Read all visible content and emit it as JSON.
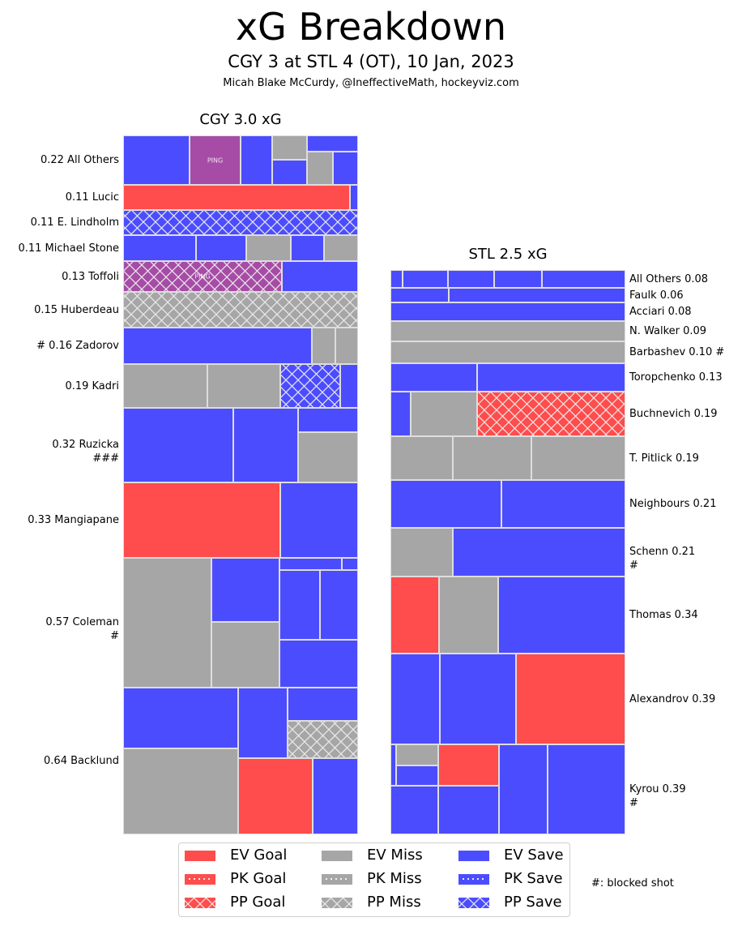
{
  "header": {
    "title": "xG Breakdown",
    "subtitle": "CGY 3 at STL 4 (OT), 10 Jan, 2023",
    "credit": "Micah Blake McCurdy, @IneffectiveMath, hockeyviz.com"
  },
  "colors": {
    "goal": "#ff4c4c",
    "miss": "#a6a6a6",
    "save": "#4c4cff",
    "ping": "#a64ca6",
    "cell_border": "#dddddd"
  },
  "legend": {
    "items": [
      {
        "label": "EV Goal",
        "outcome": "goal",
        "strength": "EV"
      },
      {
        "label": "PK Goal",
        "outcome": "goal",
        "strength": "PK"
      },
      {
        "label": "PP Goal",
        "outcome": "goal",
        "strength": "PP"
      },
      {
        "label": "EV Miss",
        "outcome": "miss",
        "strength": "EV"
      },
      {
        "label": "PK Miss",
        "outcome": "miss",
        "strength": "PK"
      },
      {
        "label": "PP Miss",
        "outcome": "miss",
        "strength": "PP"
      },
      {
        "label": "EV Save",
        "outcome": "save",
        "strength": "EV"
      },
      {
        "label": "PK Save",
        "outcome": "save",
        "strength": "PK"
      },
      {
        "label": "PP Save",
        "outcome": "save",
        "strength": "PP"
      }
    ],
    "note": "#: blocked shot"
  },
  "chart_data": {
    "type": "treemap",
    "title": "xG Breakdown",
    "panels": [
      {
        "team": "CGY",
        "title": "CGY 3.0 xG",
        "total_xg": 3.0,
        "label_side": "left",
        "rows": [
          {
            "player": "All Others",
            "xg": 0.22,
            "label": "0.22 All Others",
            "blocked": 0,
            "shots": [
              [
                "save",
                "EV"
              ],
              [
                "ping",
                "EV",
                "PING"
              ],
              [
                "save",
                "EV"
              ],
              [
                "miss",
                "EV"
              ],
              [
                "save",
                "EV"
              ],
              [
                "save",
                "EV"
              ],
              [
                "miss",
                "EV"
              ],
              [
                "save",
                "EV"
              ]
            ]
          },
          {
            "player": "Lucic",
            "xg": 0.11,
            "label": "0.11 Lucic",
            "blocked": 0,
            "shots": [
              [
                "goal",
                "EV"
              ],
              [
                "save",
                "EV"
              ]
            ]
          },
          {
            "player": "E. Lindholm",
            "xg": 0.11,
            "label": "0.11 E. Lindholm",
            "blocked": 0,
            "shots": [
              [
                "save",
                "PP"
              ]
            ]
          },
          {
            "player": "Michael Stone",
            "xg": 0.11,
            "label": "0.11 Michael Stone",
            "blocked": 0,
            "shots": [
              [
                "save",
                "EV"
              ],
              [
                "save",
                "EV"
              ],
              [
                "miss",
                "EV"
              ],
              [
                "save",
                "EV"
              ],
              [
                "miss",
                "EV"
              ]
            ]
          },
          {
            "player": "Toffoli",
            "xg": 0.13,
            "label": "0.13 Toffoli",
            "blocked": 0,
            "shots": [
              [
                "ping",
                "PP",
                "PING"
              ],
              [
                "save",
                "EV"
              ]
            ]
          },
          {
            "player": "Huberdeau",
            "xg": 0.15,
            "label": "0.15 Huberdeau",
            "blocked": 0,
            "shots": [
              [
                "miss",
                "PP"
              ]
            ]
          },
          {
            "player": "Zadorov",
            "xg": 0.16,
            "label": "# 0.16 Zadorov",
            "blocked": 1,
            "shots": [
              [
                "save",
                "EV"
              ],
              [
                "miss",
                "EV"
              ],
              [
                "miss",
                "EV"
              ]
            ]
          },
          {
            "player": "Kadri",
            "xg": 0.19,
            "label": "0.19 Kadri",
            "blocked": 0,
            "shots": [
              [
                "miss",
                "EV"
              ],
              [
                "miss",
                "EV"
              ],
              [
                "save",
                "PP"
              ],
              [
                "save",
                "EV"
              ]
            ]
          },
          {
            "player": "Ruzicka",
            "xg": 0.32,
            "label": "0.32 Ruzicka\n###",
            "blocked": 3,
            "shots": [
              [
                "save",
                "EV"
              ],
              [
                "save",
                "EV"
              ],
              [
                "save",
                "EV"
              ],
              [
                "miss",
                "EV"
              ]
            ]
          },
          {
            "player": "Mangiapane",
            "xg": 0.33,
            "label": "0.33 Mangiapane",
            "blocked": 0,
            "shots": [
              [
                "goal",
                "EV"
              ],
              [
                "save",
                "EV"
              ]
            ]
          },
          {
            "player": "Coleman",
            "xg": 0.57,
            "label": "0.57 Coleman\n#",
            "blocked": 1,
            "shots": [
              [
                "miss",
                "EV"
              ],
              [
                "save",
                "EV"
              ],
              [
                "miss",
                "EV"
              ],
              [
                "save",
                "EV"
              ],
              [
                "save",
                "EV"
              ],
              [
                "save",
                "EV"
              ],
              [
                "save",
                "EV"
              ],
              [
                "save",
                "EV"
              ]
            ]
          },
          {
            "player": "Backlund",
            "xg": 0.64,
            "label": "0.64 Backlund",
            "blocked": 0,
            "shots": [
              [
                "save",
                "EV"
              ],
              [
                "miss",
                "EV"
              ],
              [
                "save",
                "EV"
              ],
              [
                "save",
                "EV"
              ],
              [
                "miss",
                "PP"
              ],
              [
                "goal",
                "EV"
              ],
              [
                "save",
                "EV"
              ]
            ]
          }
        ]
      },
      {
        "team": "STL",
        "title": "STL 2.5 xG",
        "total_xg": 2.5,
        "label_side": "right",
        "rows": [
          {
            "player": "All Others",
            "xg": 0.08,
            "label": "All Others 0.08",
            "blocked": 0,
            "shots": [
              [
                "save",
                "EV"
              ],
              [
                "save",
                "EV"
              ],
              [
                "save",
                "EV"
              ],
              [
                "save",
                "EV"
              ],
              [
                "save",
                "EV"
              ]
            ]
          },
          {
            "player": "Faulk",
            "xg": 0.06,
            "label": "Faulk 0.06",
            "blocked": 0,
            "shots": [
              [
                "save",
                "EV"
              ],
              [
                "save",
                "EV"
              ]
            ]
          },
          {
            "player": "Acciari",
            "xg": 0.08,
            "label": "Acciari 0.08",
            "blocked": 0,
            "shots": [
              [
                "save",
                "EV"
              ]
            ]
          },
          {
            "player": "N. Walker",
            "xg": 0.09,
            "label": "N. Walker 0.09",
            "blocked": 0,
            "shots": [
              [
                "miss",
                "EV"
              ]
            ]
          },
          {
            "player": "Barbashev",
            "xg": 0.1,
            "label": "Barbashev 0.10 #",
            "blocked": 1,
            "shots": [
              [
                "miss",
                "EV"
              ]
            ]
          },
          {
            "player": "Toropchenko",
            "xg": 0.13,
            "label": "Toropchenko 0.13",
            "blocked": 0,
            "shots": [
              [
                "save",
                "EV"
              ],
              [
                "save",
                "EV"
              ]
            ]
          },
          {
            "player": "Buchnevich",
            "xg": 0.19,
            "label": "Buchnevich 0.19",
            "blocked": 0,
            "shots": [
              [
                "save",
                "EV"
              ],
              [
                "miss",
                "EV"
              ],
              [
                "goal",
                "PP"
              ]
            ]
          },
          {
            "player": "T. Pitlick",
            "xg": 0.19,
            "label": "T. Pitlick 0.19",
            "blocked": 0,
            "shots": [
              [
                "miss",
                "EV"
              ],
              [
                "miss",
                "EV"
              ],
              [
                "miss",
                "EV"
              ]
            ]
          },
          {
            "player": "Neighbours",
            "xg": 0.21,
            "label": "Neighbours 0.21",
            "blocked": 0,
            "shots": [
              [
                "save",
                "EV"
              ],
              [
                "save",
                "EV"
              ]
            ]
          },
          {
            "player": "Schenn",
            "xg": 0.21,
            "label": "Schenn 0.21\n#",
            "blocked": 1,
            "shots": [
              [
                "miss",
                "EV"
              ],
              [
                "save",
                "EV"
              ]
            ]
          },
          {
            "player": "Thomas",
            "xg": 0.34,
            "label": "Thomas 0.34",
            "blocked": 0,
            "shots": [
              [
                "goal",
                "EV"
              ],
              [
                "miss",
                "EV"
              ],
              [
                "save",
                "EV"
              ]
            ]
          },
          {
            "player": "Alexandrov",
            "xg": 0.39,
            "label": "Alexandrov 0.39",
            "blocked": 0,
            "shots": [
              [
                "save",
                "EV"
              ],
              [
                "save",
                "EV"
              ],
              [
                "goal",
                "EV"
              ]
            ]
          },
          {
            "player": "Kyrou",
            "xg": 0.39,
            "label": "Kyrou 0.39\n#",
            "blocked": 1,
            "shots": [
              [
                "save",
                "EV"
              ],
              [
                "miss",
                "EV"
              ],
              [
                "save",
                "EV"
              ],
              [
                "goal",
                "EV"
              ],
              [
                "save",
                "EV"
              ],
              [
                "save",
                "EV"
              ],
              [
                "save",
                "EV"
              ],
              [
                "save",
                "EV"
              ]
            ]
          }
        ]
      }
    ]
  }
}
